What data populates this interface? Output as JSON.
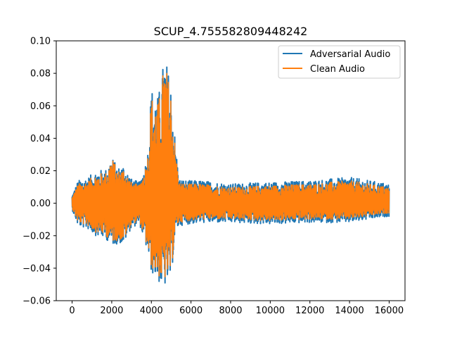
{
  "chart_data": {
    "type": "line",
    "title": "SCUP_4.755582809448242",
    "xlabel": "",
    "ylabel": "",
    "xlim": [
      -800,
      16800
    ],
    "ylim": [
      -0.06,
      0.1
    ],
    "xticks": [
      0,
      2000,
      4000,
      6000,
      8000,
      10000,
      12000,
      14000,
      16000
    ],
    "xtick_labels": [
      "0",
      "2000",
      "4000",
      "6000",
      "8000",
      "10000",
      "12000",
      "14000",
      "16000"
    ],
    "yticks": [
      -0.06,
      -0.04,
      -0.02,
      0.0,
      0.02,
      0.04,
      0.06,
      0.08,
      0.1
    ],
    "ytick_labels": [
      "−0.06",
      "−0.04",
      "−0.02",
      "0.00",
      "0.02",
      "0.04",
      "0.06",
      "0.08",
      "0.10"
    ],
    "grid": false,
    "legend_position": "top-right",
    "series": [
      {
        "name": "Adversarial Audio",
        "color": "#1f77b4",
        "envelope": {
          "x": [
            0,
            300,
            800,
            1200,
            1700,
            2000,
            2300,
            2600,
            3000,
            3400,
            3800,
            4000,
            4300,
            4500,
            4650,
            4800,
            5000,
            5200,
            5400,
            5800,
            6500,
            8000,
            10000,
            12000,
            14000,
            16000
          ],
          "max": [
            0.005,
            0.014,
            0.016,
            0.02,
            0.021,
            0.029,
            0.022,
            0.024,
            0.015,
            0.013,
            0.029,
            0.072,
            0.065,
            0.075,
            0.093,
            0.085,
            0.073,
            0.04,
            0.015,
            0.014,
            0.014,
            0.012,
            0.013,
            0.014,
            0.016,
            0.012
          ],
          "min": [
            -0.004,
            -0.014,
            -0.016,
            -0.02,
            -0.022,
            -0.026,
            -0.025,
            -0.025,
            -0.015,
            -0.013,
            -0.03,
            -0.043,
            -0.047,
            -0.052,
            -0.052,
            -0.05,
            -0.047,
            -0.018,
            -0.014,
            -0.013,
            -0.012,
            -0.012,
            -0.013,
            -0.012,
            -0.012,
            -0.008
          ]
        }
      },
      {
        "name": "Clean Audio",
        "color": "#ff7f0e",
        "envelope": {
          "x": [
            0,
            300,
            800,
            1200,
            1700,
            2000,
            2300,
            2600,
            3000,
            3400,
            3800,
            4000,
            4300,
            4500,
            4650,
            4800,
            5000,
            5200,
            5400,
            5800,
            6500,
            8000,
            10000,
            12000,
            14000,
            16000
          ],
          "max": [
            0.004,
            0.012,
            0.014,
            0.018,
            0.019,
            0.029,
            0.02,
            0.022,
            0.013,
            0.011,
            0.027,
            0.067,
            0.061,
            0.071,
            0.089,
            0.081,
            0.069,
            0.036,
            0.013,
            0.012,
            0.012,
            0.01,
            0.011,
            0.012,
            0.014,
            0.01
          ],
          "min": [
            -0.003,
            -0.012,
            -0.014,
            -0.018,
            -0.02,
            -0.024,
            -0.023,
            -0.023,
            -0.013,
            -0.011,
            -0.028,
            -0.04,
            -0.044,
            -0.048,
            -0.048,
            -0.046,
            -0.044,
            -0.016,
            -0.012,
            -0.011,
            -0.01,
            -0.01,
            -0.011,
            -0.01,
            -0.01,
            -0.006
          ]
        }
      }
    ]
  }
}
